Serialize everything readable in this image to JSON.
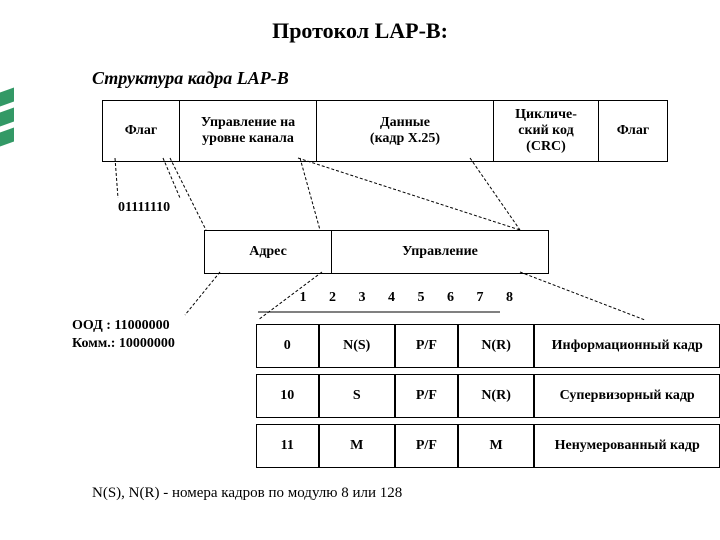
{
  "title": "Протокол LAP-B:",
  "subtitle": "Структура кадра LAP-B",
  "frame": {
    "flag": "Флаг",
    "link_ctrl": "Управление на уровне канала",
    "data": "Данные\n(кадр X.25)",
    "crc": "Цикличе-ский код (CRC)",
    "flag2": "Флаг"
  },
  "flag_bits": "01111110",
  "sub": {
    "addr": "Адрес",
    "ctrl": "Управление"
  },
  "ood_lines": {
    "l1": "ООД  : 11000000",
    "l2": "Комм.: 10000000"
  },
  "bits": [
    "1",
    "2",
    "3",
    "4",
    "5",
    "6",
    "7",
    "8"
  ],
  "types": {
    "r0": {
      "a": "0",
      "b": "N(S)",
      "c": "P/F",
      "d": "N(R)",
      "e": "Информационный кадр"
    },
    "r1": {
      "a": "10",
      "b": "S",
      "c": "P/F",
      "d": "N(R)",
      "e": "Супервизорный кадр"
    },
    "r2": {
      "a": "11",
      "b": "M",
      "c": "P/F",
      "d": "M",
      "e": "Ненумерованный кадр"
    }
  },
  "footnote": "N(S), N(R) - номера кадров по модулю 8 или 128",
  "colors": {
    "accent": "#339966",
    "border": "#000000",
    "bg": "#ffffff"
  }
}
